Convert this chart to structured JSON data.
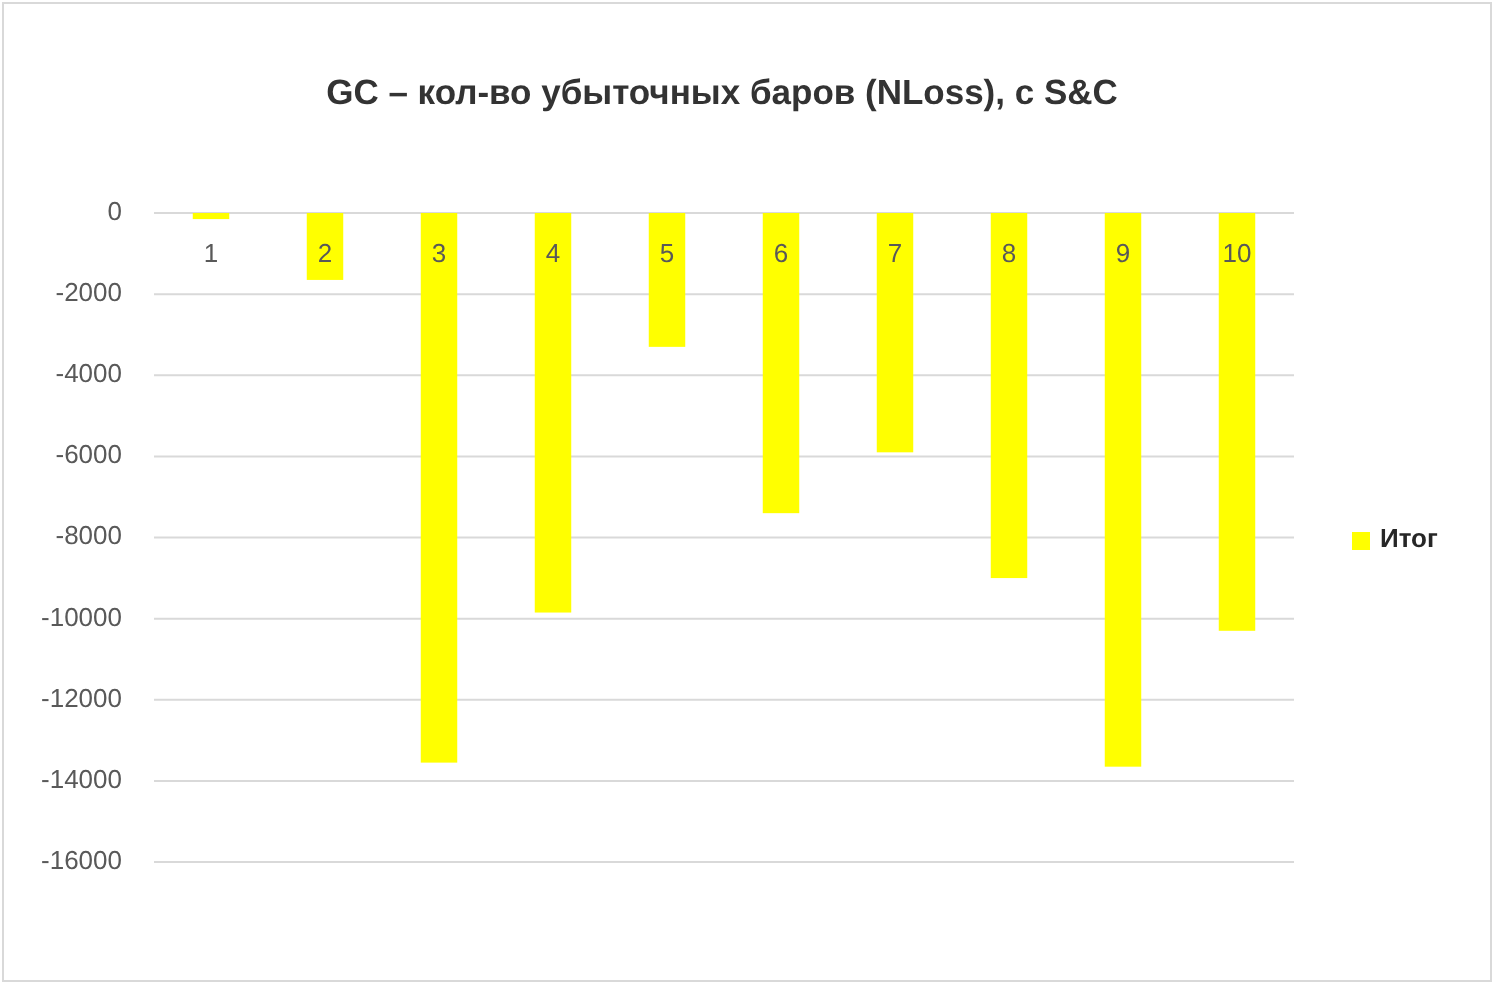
{
  "chart_data": {
    "type": "bar",
    "title": "GC – кол-во убыточных баров (NLoss), с S&C",
    "categories": [
      "1",
      "2",
      "3",
      "4",
      "5",
      "6",
      "7",
      "8",
      "9",
      "10"
    ],
    "series": [
      {
        "name": "Итог",
        "color": "#ffff00",
        "values": [
          -150,
          -1650,
          -13550,
          -9850,
          -3300,
          -7400,
          -5900,
          -9000,
          -13650,
          -10300
        ]
      }
    ],
    "ylim": [
      -16000,
      0
    ],
    "yticks": [
      0,
      -2000,
      -4000,
      -6000,
      -8000,
      -10000,
      -12000,
      -14000,
      -16000
    ],
    "grid": "y",
    "legend": "right"
  }
}
